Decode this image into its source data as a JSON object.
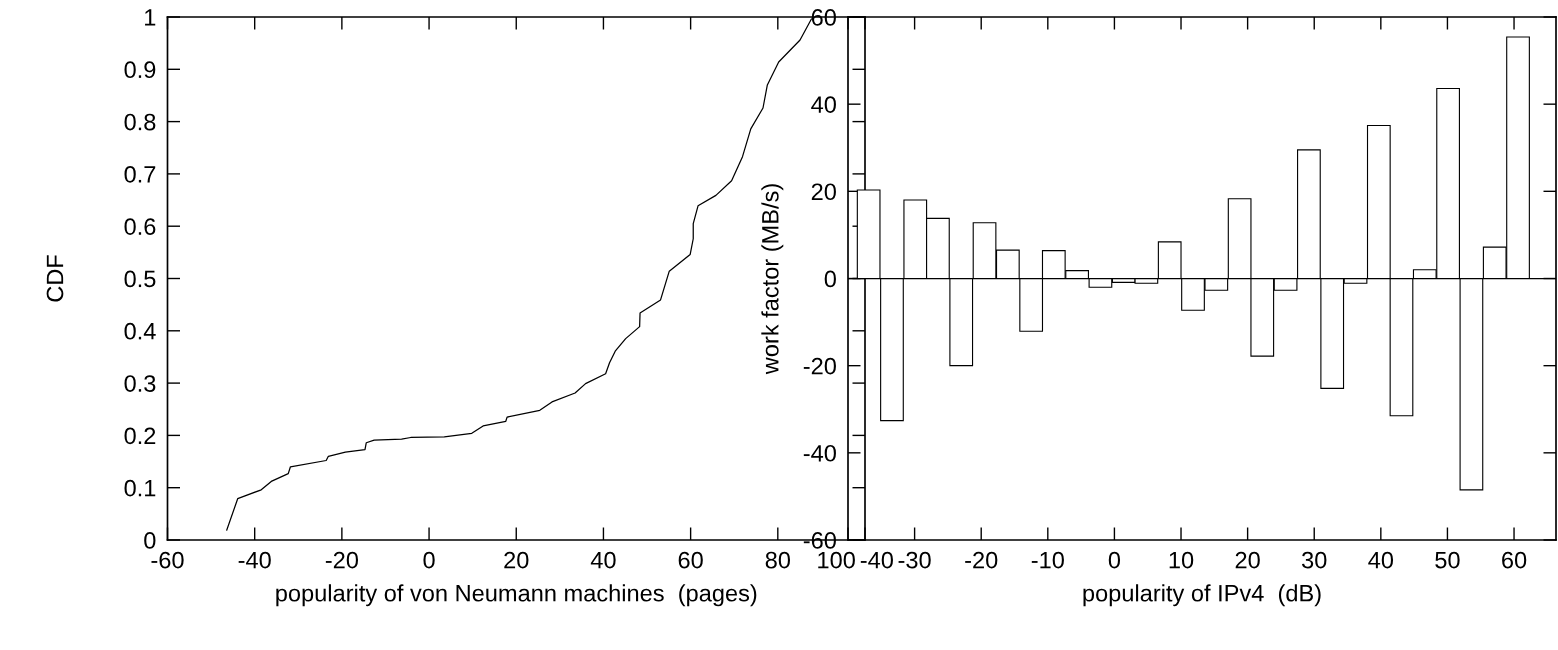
{
  "chart_data": [
    {
      "type": "line",
      "xlabel": "popularity of von Neumann machines  (pages)",
      "ylabel": "CDF",
      "xlim": [
        -60,
        100
      ],
      "xticks": [
        -60,
        -40,
        -20,
        0,
        20,
        40,
        60,
        80,
        100
      ],
      "ylim": [
        0,
        1
      ],
      "yticks": [
        0,
        0.1,
        0.2,
        0.3,
        0.4,
        0.5,
        0.6,
        0.7,
        0.8,
        0.9,
        1
      ],
      "series": [
        {
          "color": "#000000",
          "x": [
            -46.4,
            -43.9,
            -38.5,
            -36.2,
            -32.3,
            -31.8,
            -23.6,
            -23.1,
            -19.2,
            -14.7,
            -14.4,
            -12.6,
            -6.3,
            -4.2,
            3.5,
            9.8,
            12.4,
            17.6,
            17.9,
            25.4,
            28.2,
            33.5,
            35.9,
            40.5,
            41.4,
            42.7,
            45.1,
            48.3,
            48.4,
            53.1,
            55.1,
            59.9,
            60.6,
            60.6,
            61.7,
            65.8,
            69.4,
            71.9,
            73.8,
            76.6,
            77.6,
            80.2,
            85.1,
            87.7
          ],
          "values": [
            0.019,
            0.079,
            0.096,
            0.112,
            0.127,
            0.14,
            0.152,
            0.16,
            0.168,
            0.173,
            0.186,
            0.191,
            0.193,
            0.196,
            0.197,
            0.204,
            0.218,
            0.227,
            0.235,
            0.248,
            0.264,
            0.281,
            0.299,
            0.318,
            0.339,
            0.361,
            0.385,
            0.408,
            0.434,
            0.459,
            0.514,
            0.546,
            0.576,
            0.605,
            0.639,
            0.659,
            0.687,
            0.733,
            0.786,
            0.826,
            0.87,
            0.914,
            0.956,
            0.996
          ]
        }
      ]
    },
    {
      "type": "bar",
      "xlabel": "popularity of IPv4  (dB)",
      "ylabel": "work factor (MB/s)",
      "xlim": [
        -40,
        66.3
      ],
      "xticks": [
        -40,
        -30,
        -20,
        -10,
        0,
        10,
        20,
        30,
        40,
        50,
        60
      ],
      "ylim": [
        -60,
        60
      ],
      "yticks": [
        -60,
        -40,
        -20,
        0,
        20,
        40,
        60
      ],
      "ref_lines": [
        {
          "axis": "y",
          "value": 0,
          "color": "#000000"
        }
      ],
      "series": [
        {
          "color": "#ffffff",
          "x": [
            -36.9,
            -33.4,
            -29.9,
            -26.5,
            -23.0,
            -19.5,
            -16.0,
            -12.5,
            -9.1,
            -5.6,
            -2.1,
            1.4,
            4.8,
            8.3,
            11.8,
            15.3,
            18.8,
            22.2,
            25.7,
            29.2,
            32.7,
            36.2,
            39.7,
            43.1,
            46.6,
            50.1,
            53.6,
            57.1,
            60.6
          ],
          "values": [
            20.3,
            -32.6,
            18.0,
            13.8,
            -20.0,
            12.8,
            6.5,
            -12.1,
            6.4,
            1.8,
            -2.0,
            -0.9,
            -1.1,
            8.4,
            -7.3,
            -2.7,
            18.3,
            -17.8,
            -2.7,
            29.5,
            -25.2,
            -1.1,
            35.1,
            -31.5,
            2.0,
            43.6,
            -48.5,
            7.2,
            55.4
          ]
        }
      ]
    }
  ]
}
